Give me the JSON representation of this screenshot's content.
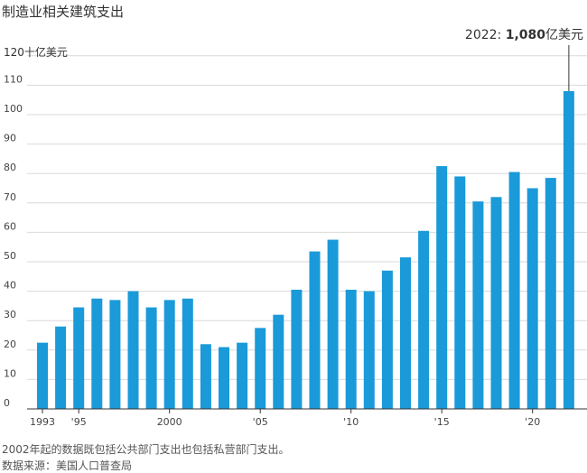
{
  "chart_data": {
    "type": "bar",
    "title": "制造业相关建筑支出",
    "ylabel_top": "120十亿美元",
    "ylim": [
      0,
      120
    ],
    "yticks": [
      0,
      10,
      20,
      30,
      40,
      50,
      60,
      70,
      80,
      90,
      100,
      110
    ],
    "color": "#1a9ad9",
    "years": [
      1993,
      1994,
      1995,
      1996,
      1997,
      1998,
      1999,
      2000,
      2001,
      2002,
      2003,
      2004,
      2005,
      2006,
      2007,
      2008,
      2009,
      2010,
      2011,
      2012,
      2013,
      2014,
      2015,
      2016,
      2017,
      2018,
      2019,
      2020,
      2021,
      2022
    ],
    "values": [
      22.5,
      28,
      34.5,
      37.5,
      37,
      40,
      34.5,
      37,
      37.5,
      22,
      21,
      22.5,
      27.5,
      32,
      40.5,
      53.5,
      57.5,
      40.5,
      40,
      47,
      51.5,
      60.5,
      82.5,
      79,
      70.5,
      72,
      80.5,
      75,
      78.5,
      108
    ],
    "xtick_labels": [
      {
        "year": 1993,
        "label": "1993"
      },
      {
        "year": 1995,
        "label": "'95"
      },
      {
        "year": 2000,
        "label": "2000"
      },
      {
        "year": 2005,
        "label": "'05"
      },
      {
        "year": 2010,
        "label": "'10"
      },
      {
        "year": 2015,
        "label": "'15"
      },
      {
        "year": 2020,
        "label": "'20"
      }
    ],
    "annotation": {
      "year": 2022,
      "prefix": "2022: ",
      "value_text": "1,080",
      "suffix": "亿美元"
    }
  },
  "footnote": "2002年起的数据既包括公共部门支出也包括私营部门支出。",
  "source": "数据来源：美国人口普查局"
}
